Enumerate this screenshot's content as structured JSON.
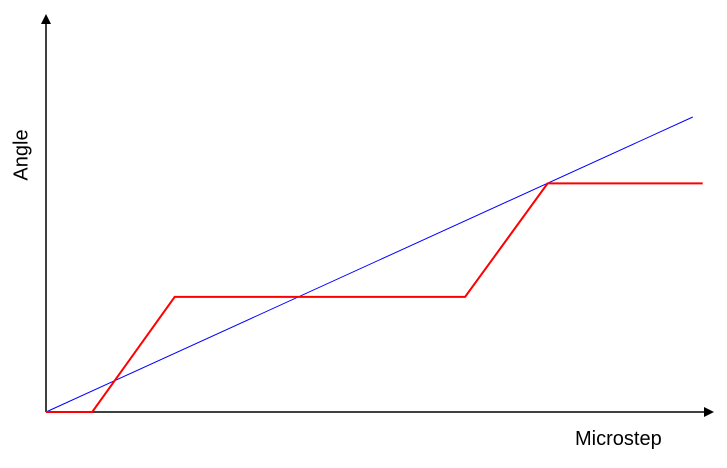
{
  "chart_data": {
    "type": "line",
    "title": "",
    "xlabel": "Microstep",
    "ylabel": "Angle",
    "xlim": [
      0,
      100
    ],
    "ylim": [
      0,
      100
    ],
    "grid": false,
    "series": [
      {
        "color": "#0000ff",
        "x": [
          0,
          98
        ],
        "y": [
          0,
          100
        ]
      },
      {
        "color": "#ff0000",
        "x": [
          0,
          7,
          19.5,
          63.5,
          76,
          99.5
        ],
        "y": [
          0,
          0,
          39,
          39,
          77.5,
          77.5
        ]
      }
    ]
  }
}
